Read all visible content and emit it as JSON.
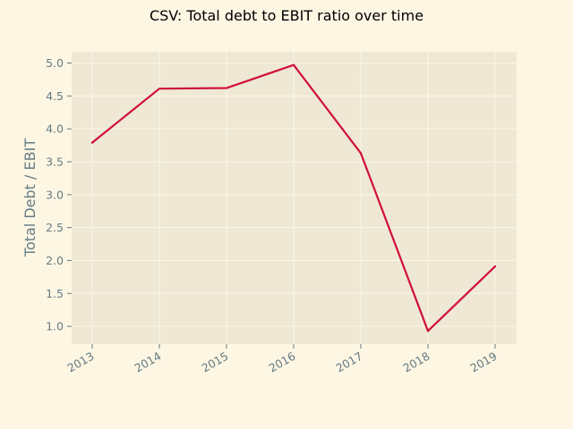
{
  "chart_data": {
    "type": "line",
    "title": "CSV: Total debt to EBIT ratio over time",
    "xlabel": "",
    "ylabel": "Total Debt / EBIT",
    "x": [
      "2013",
      "2014",
      "2015",
      "2016",
      "2017",
      "2018",
      "2019"
    ],
    "series": [
      {
        "values": [
          3.79,
          4.61,
          4.62,
          4.97,
          3.63,
          0.93,
          1.91
        ]
      }
    ],
    "yticks": [
      "1.0",
      "1.5",
      "2.0",
      "2.5",
      "3.0",
      "3.5",
      "4.0",
      "4.5",
      "5.0"
    ],
    "ylim": [
      0.73,
      5.17
    ],
    "grid": true,
    "legend": "none",
    "colors": {
      "line": "#d0103a",
      "plot_background": "#eee8d5",
      "figure_background": "#fdf6e3",
      "grid": "#fdf6e3",
      "tick_text": "#657b83",
      "ylabel_text": "#657b83"
    }
  }
}
